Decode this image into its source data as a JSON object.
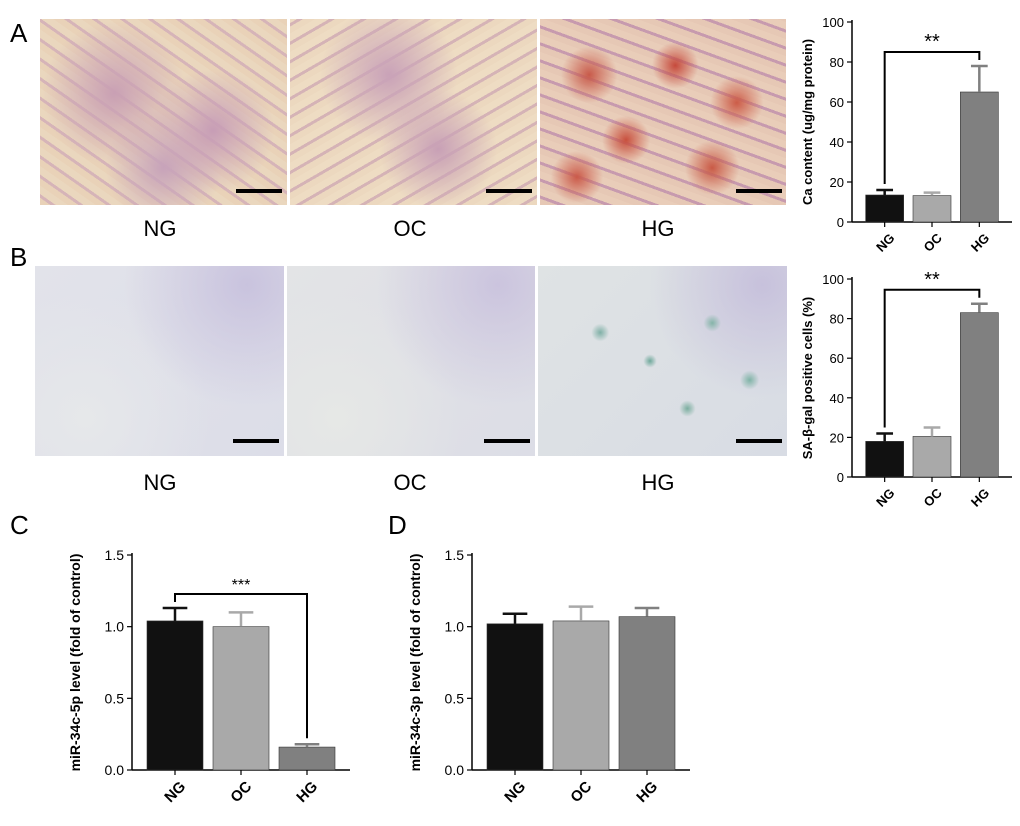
{
  "panels": {
    "A": "A",
    "B": "B",
    "C": "C",
    "D": "D"
  },
  "images": {
    "A": [
      {
        "label": "NG"
      },
      {
        "label": "OC"
      },
      {
        "label": "HG"
      }
    ],
    "B": [
      {
        "label": "NG"
      },
      {
        "label": "OC"
      },
      {
        "label": "HG"
      }
    ]
  },
  "colors": {
    "NG": "#111111",
    "OC": "#a9a9a9",
    "HG": "#808080"
  },
  "chart_data": [
    {
      "id": "A",
      "type": "bar",
      "categories": [
        "NG",
        "OC",
        "HG"
      ],
      "values": [
        13.5,
        13.2,
        65
      ],
      "errors": [
        2.5,
        1.5,
        13
      ],
      "ylabel": "Ca content (ug/mg protein)",
      "ylim": [
        0,
        100
      ],
      "yticks": [
        "0",
        "20",
        "40",
        "60",
        "80",
        "100"
      ],
      "significance": {
        "from": "NG",
        "to": "HG",
        "label": "**"
      }
    },
    {
      "id": "B",
      "type": "bar",
      "categories": [
        "NG",
        "OC",
        "HG"
      ],
      "values": [
        18,
        20.5,
        83
      ],
      "errors": [
        4,
        4.5,
        4.5
      ],
      "ylabel": "SA-β-gal positive cells (%)",
      "ylim": [
        0,
        100
      ],
      "yticks": [
        "0",
        "20",
        "40",
        "60",
        "80",
        "100"
      ],
      "significance": {
        "from": "NG",
        "to": "HG",
        "label": "**"
      }
    },
    {
      "id": "C",
      "type": "bar",
      "categories": [
        "NG",
        "OC",
        "HG"
      ],
      "values": [
        1.04,
        1.0,
        0.16
      ],
      "errors": [
        0.09,
        0.1,
        0.02
      ],
      "ylabel": "miR-34c-5p level (fold of control)",
      "ylim": [
        0,
        1.5
      ],
      "yticks": [
        "0.0",
        "0.5",
        "1.0",
        "1.5"
      ],
      "significance": {
        "from": "NG",
        "to": "HG",
        "label": "***"
      }
    },
    {
      "id": "D",
      "type": "bar",
      "categories": [
        "NG",
        "OC",
        "HG"
      ],
      "values": [
        1.02,
        1.04,
        1.07
      ],
      "errors": [
        0.07,
        0.1,
        0.06
      ],
      "ylabel": "miR-34c-3p level (fold of control)",
      "ylim": [
        0,
        1.5
      ],
      "yticks": [
        "0.0",
        "0.5",
        "1.0",
        "1.5"
      ]
    }
  ]
}
